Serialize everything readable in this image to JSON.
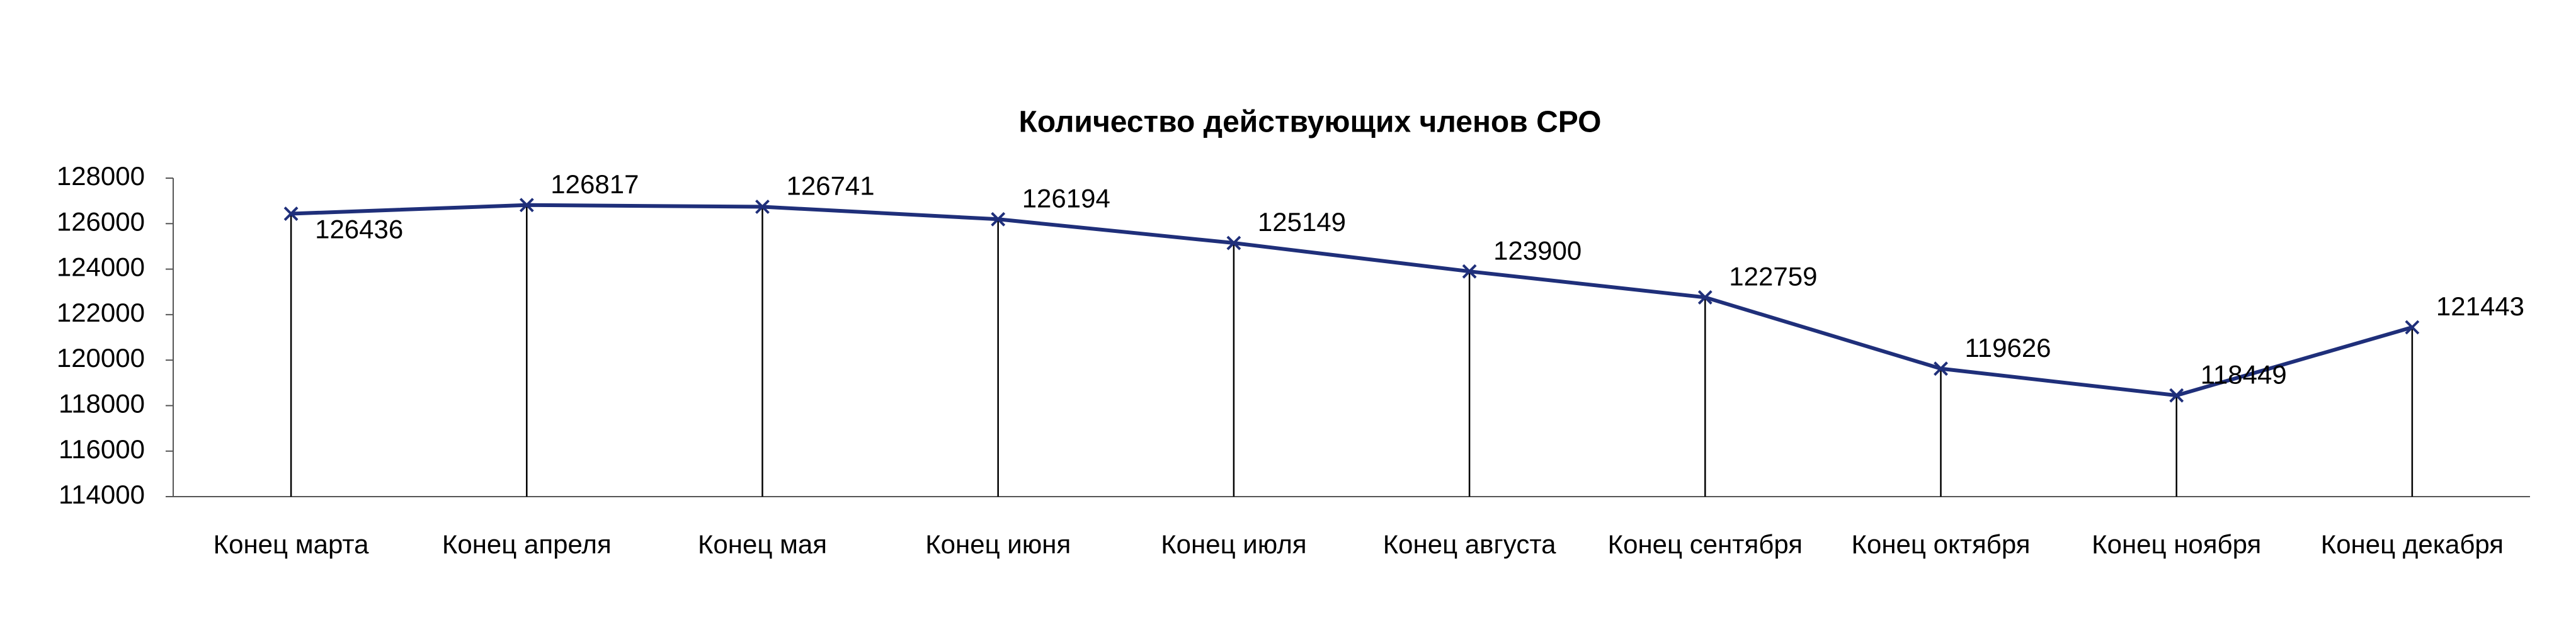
{
  "chart_data": {
    "type": "line",
    "title": "Количество действующих членов СРО",
    "categories": [
      "Конец марта",
      "Конец апреля",
      "Конец мая",
      "Конец июня",
      "Конец июля",
      "Конец августа",
      "Конец сентября",
      "Конец октября",
      "Конец ноября",
      "Конец декабря"
    ],
    "values": [
      126436,
      126817,
      126741,
      126194,
      125149,
      123900,
      122759,
      119626,
      118449,
      121443
    ],
    "color": "#1f2f7a",
    "ylim": [
      114000,
      128000
    ],
    "yticks": [
      114000,
      116000,
      118000,
      120000,
      122000,
      124000,
      126000,
      128000
    ],
    "drop_lines": true,
    "data_labels": true,
    "grid": false
  }
}
